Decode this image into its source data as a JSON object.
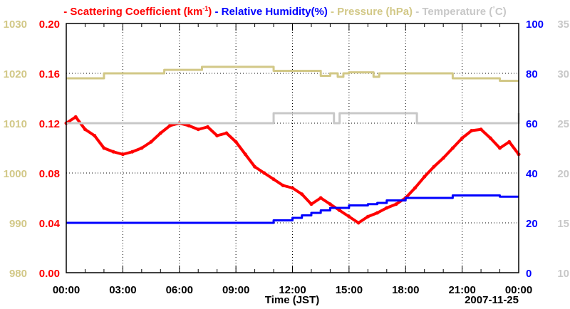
{
  "chart_data": {
    "type": "line",
    "legend": [
      {
        "label": "Scattering Coefficient (km",
        "sup": "-1",
        "suffix": ")",
        "color": "#ff0000"
      },
      {
        "label": "Relative Humidity(%)",
        "color": "#0000ff"
      },
      {
        "label": "Pressure (hPa)",
        "color": "#d2c887"
      },
      {
        "label": "Temperature (",
        "sup": "°",
        "suffix": "C)",
        "color": "#c8c8c8"
      }
    ],
    "xlabel": "Time (JST)",
    "date": "2007-11-25",
    "xlim": [
      0,
      24
    ],
    "xticks": [
      "00:00",
      "03:00",
      "06:00",
      "09:00",
      "12:00",
      "15:00",
      "18:00",
      "21:00",
      "00:00"
    ],
    "axes": {
      "scat": {
        "ylim": [
          0,
          0.2
        ],
        "ticks": [
          "0.00",
          "0.04",
          "0.08",
          "0.12",
          "0.16",
          "0.20"
        ],
        "color": "#ff0000"
      },
      "press": {
        "ylim": [
          980,
          1030
        ],
        "ticks": [
          "980",
          "990",
          "1000",
          "1010",
          "1020",
          "1030"
        ],
        "color": "#d2c887"
      },
      "rh": {
        "ylim": [
          0,
          100
        ],
        "ticks": [
          "0",
          "20",
          "40",
          "60",
          "80",
          "100"
        ],
        "color": "#0000ff"
      },
      "temp": {
        "ylim": [
          10,
          35
        ],
        "ticks": [
          "10",
          "15",
          "20",
          "25",
          "30",
          "35"
        ],
        "color": "#c8c8c8"
      }
    },
    "grid": true,
    "series": [
      {
        "name": "Scattering Coefficient",
        "axis": "scat",
        "color": "#ff0000",
        "step": false,
        "x": [
          0,
          0.5,
          1,
          1.5,
          2,
          2.5,
          3,
          3.5,
          4,
          4.5,
          5,
          5.5,
          6,
          6.5,
          7,
          7.5,
          8,
          8.5,
          9,
          9.5,
          10,
          10.5,
          11,
          11.5,
          12,
          12.5,
          13,
          13.5,
          14,
          14.5,
          15,
          15.5,
          16,
          16.5,
          17,
          17.5,
          18,
          18.5,
          19,
          19.5,
          20,
          20.5,
          21,
          21.5,
          22,
          22.5,
          23,
          23.5,
          24
        ],
        "y": [
          0.12,
          0.125,
          0.115,
          0.11,
          0.1,
          0.097,
          0.095,
          0.097,
          0.1,
          0.105,
          0.112,
          0.118,
          0.12,
          0.118,
          0.115,
          0.117,
          0.11,
          0.112,
          0.105,
          0.095,
          0.085,
          0.08,
          0.075,
          0.07,
          0.068,
          0.063,
          0.055,
          0.06,
          0.055,
          0.05,
          0.045,
          0.04,
          0.045,
          0.048,
          0.052,
          0.055,
          0.06,
          0.068,
          0.077,
          0.085,
          0.092,
          0.1,
          0.108,
          0.114,
          0.115,
          0.108,
          0.1,
          0.105,
          0.095
        ]
      },
      {
        "name": "Relative Humidity",
        "axis": "rh",
        "color": "#0000ff",
        "step": true,
        "x": [
          0,
          11,
          12,
          12.5,
          13,
          13.5,
          14,
          15,
          16,
          16.5,
          17,
          18,
          20.5,
          23,
          24
        ],
        "y": [
          20,
          21,
          22,
          23,
          24,
          25,
          26,
          27,
          27.5,
          28,
          29,
          30,
          31,
          30.5,
          30.5
        ]
      },
      {
        "name": "Pressure",
        "axis": "press",
        "color": "#d2c887",
        "step": true,
        "x": [
          0,
          2,
          5.2,
          7.2,
          11,
          13.5,
          14,
          14.4,
          14.7,
          15,
          16.3,
          16.6,
          20.5,
          23,
          24
        ],
        "y": [
          1019,
          1020,
          1020.7,
          1021.3,
          1020.5,
          1019.5,
          1020,
          1019.3,
          1020,
          1020.2,
          1019.3,
          1020,
          1019,
          1018.5,
          1018.5
        ]
      },
      {
        "name": "Temperature",
        "axis": "temp",
        "color": "#c8c8c8",
        "step": true,
        "x": [
          0,
          11,
          13,
          14.2,
          14.5,
          18.3,
          18.6,
          24
        ],
        "y": [
          25,
          26,
          26,
          25,
          26,
          26,
          25,
          26
        ]
      }
    ]
  }
}
